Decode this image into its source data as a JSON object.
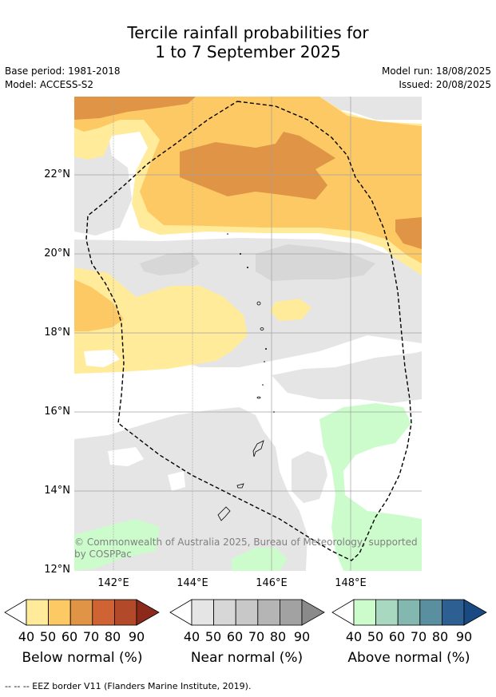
{
  "title_line1": "Tercile rainfall probabilities for",
  "title_line2": "1 to 7 September 2025",
  "base_period": "Base period: 1981-2018",
  "model": "Model: ACCESS-S2",
  "model_run": "Model run: 18/08/2025",
  "issued": "Issued: 20/08/2025",
  "lat_labels": [
    "22°N",
    "20°N",
    "18°N",
    "16°N",
    "14°N",
    "12°N"
  ],
  "lon_labels": [
    "142°E",
    "144°E",
    "146°E",
    "148°E"
  ],
  "copyright_line1": "© Commonwealth of Australia 2025, Bureau of Meteorology, supported",
  "copyright_line2": "by COSPPac",
  "colorbars": [
    {
      "title": "Below normal (%)",
      "ticks": [
        "40",
        "50",
        "60",
        "70",
        "80",
        "90"
      ],
      "colors": [
        "#ffeb99",
        "#fdc965",
        "#e09445",
        "#cf6333",
        "#b24a29",
        "#8b2a1a"
      ]
    },
    {
      "title": "Near normal (%)",
      "ticks": [
        "40",
        "50",
        "60",
        "70",
        "80",
        "90"
      ],
      "colors": [
        "#e5e5e5",
        "#d7d7d7",
        "#c8c8c8",
        "#b5b5b5",
        "#a2a2a2",
        "#8a8a8a"
      ]
    },
    {
      "title": "Above normal (%)",
      "ticks": [
        "40",
        "50",
        "60",
        "70",
        "80",
        "90"
      ],
      "colors": [
        "#ccfccc",
        "#a8d8c0",
        "#82b8b0",
        "#5a8fa0",
        "#2e5f92",
        "#1a4a82"
      ]
    }
  ],
  "eez_note": "--  --  -- EEZ border V11 (Flanders Marine Institute, 2019)."
}
